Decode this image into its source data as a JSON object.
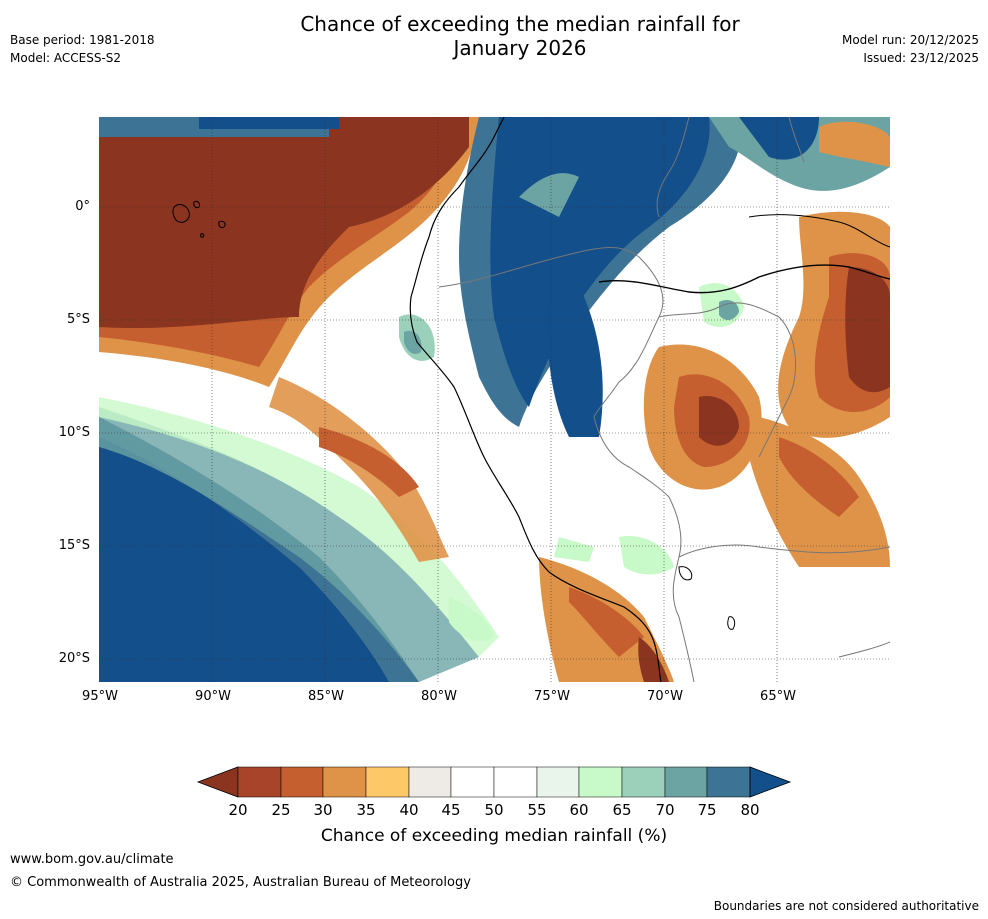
{
  "header": {
    "title_line1": "Chance of exceeding the median rainfall for",
    "title_line2": "January 2026",
    "base_period": "Base period: 1981-2018",
    "model": "Model: ACCESS-S2",
    "model_run": "Model run: 20/12/2025",
    "issued": "Issued: 23/12/2025"
  },
  "map": {
    "lat_labels": [
      "0°",
      "5°S",
      "10°S",
      "15°S",
      "20°S"
    ],
    "lon_labels": [
      "95°W",
      "90°W",
      "85°W",
      "80°W",
      "75°W",
      "70°W",
      "65°W"
    ]
  },
  "colorbar": {
    "title": "Chance of exceeding median rainfall (%)",
    "labels": [
      "20",
      "25",
      "30",
      "35",
      "40",
      "45",
      "50",
      "55",
      "60",
      "65",
      "70",
      "75",
      "80"
    ],
    "colors": {
      "low_extend": "#8b3520",
      "c20": "#a8442a",
      "c25": "#c65f30",
      "c30": "#df9348",
      "c35": "#fdc868",
      "c40": "#eeebe7",
      "c45": "#ffffff",
      "c50": "#ffffff",
      "c55": "#e9f5ea",
      "c60": "#c8f9c8",
      "c65": "#9bd1bb",
      "c70": "#6ca4a4",
      "c75": "#3d7394",
      "high_extend": "#134f8a"
    }
  },
  "footer": {
    "website": "www.bom.gov.au/climate",
    "copyright": "© Commonwealth of Australia 2025, Australian Bureau of Meteorology",
    "disclaimer": "Boundaries are not considered authoritative"
  }
}
